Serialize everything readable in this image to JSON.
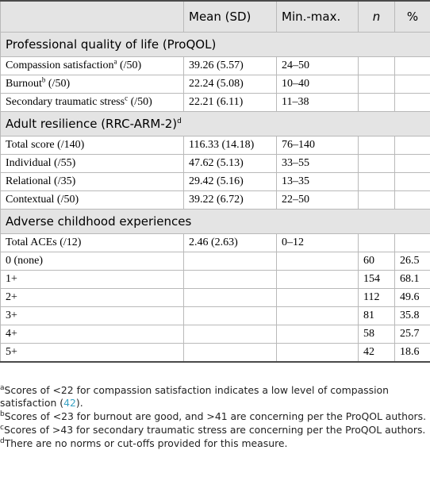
{
  "header": {
    "col1": "",
    "mean": "Mean (SD)",
    "minmax": "Min.-max.",
    "n": "n",
    "pct": "%"
  },
  "sections": {
    "proqol": {
      "label": "Professional quality of life (ProQOL)"
    },
    "resilience": {
      "label": "Adult resilience (RRC-ARM-2)",
      "sup": "d"
    },
    "aces": {
      "label": "Adverse childhood experiences"
    }
  },
  "rows": [
    {
      "label": "Compassion satisfaction",
      "sup": "a",
      "suffix": " (/50)",
      "mean": "39.26 (5.57)",
      "minmax": "24–50",
      "n": "",
      "pct": ""
    },
    {
      "label": "Burnout",
      "sup": "b",
      "suffix": " (/50)",
      "mean": "22.24 (5.08)",
      "minmax": "10–40",
      "n": "",
      "pct": ""
    },
    {
      "label": "Secondary traumatic stress",
      "sup": "c",
      "suffix": " (/50)",
      "mean": "22.21 (6.11)",
      "minmax": "11–38",
      "n": "",
      "pct": ""
    },
    {
      "label": "Total score (/140)",
      "sup": "",
      "suffix": "",
      "mean": "116.33 (14.18)",
      "minmax": "76–140",
      "n": "",
      "pct": ""
    },
    {
      "label": "Individual (/55)",
      "sup": "",
      "suffix": "",
      "mean": "47.62 (5.13)",
      "minmax": "33–55",
      "n": "",
      "pct": ""
    },
    {
      "label": "Relational (/35)",
      "sup": "",
      "suffix": "",
      "mean": "29.42 (5.16)",
      "minmax": "13–35",
      "n": "",
      "pct": ""
    },
    {
      "label": "Contextual (/50)",
      "sup": "",
      "suffix": "",
      "mean": "39.22 (6.72)",
      "minmax": "22–50",
      "n": "",
      "pct": ""
    },
    {
      "label": "Total ACEs (/12)",
      "sup": "",
      "suffix": "",
      "mean": "2.46 (2.63)",
      "minmax": "0–12",
      "n": "",
      "pct": ""
    },
    {
      "label": "0 (none)",
      "sup": "",
      "suffix": "",
      "mean": "",
      "minmax": "",
      "n": "60",
      "pct": "26.5"
    },
    {
      "label": "1+",
      "sup": "",
      "suffix": "",
      "mean": "",
      "minmax": "",
      "n": "154",
      "pct": "68.1"
    },
    {
      "label": "2+",
      "sup": "",
      "suffix": "",
      "mean": "",
      "minmax": "",
      "n": "112",
      "pct": "49.6"
    },
    {
      "label": "3+",
      "sup": "",
      "suffix": "",
      "mean": "",
      "minmax": "",
      "n": "81",
      "pct": "35.8"
    },
    {
      "label": "4+",
      "sup": "",
      "suffix": "",
      "mean": "",
      "minmax": "",
      "n": "58",
      "pct": "25.7"
    },
    {
      "label": "5+",
      "sup": "",
      "suffix": "",
      "mean": "",
      "minmax": "",
      "n": "42",
      "pct": "18.6"
    }
  ],
  "notes": {
    "a": {
      "mark": "a",
      "text": "Scores of <22 for compassion satisfaction indicates a low level of compassion satisfaction (",
      "ref": "42",
      "tail": ")."
    },
    "b": {
      "mark": "b",
      "text": "Scores of <23 for burnout are good, and >41 are concerning per the ProQOL authors."
    },
    "c": {
      "mark": "c",
      "text": "Scores of >43 for secondary traumatic stress are concerning per the ProQOL authors."
    },
    "d": {
      "mark": "d",
      "text": "There are no norms or cut-offs provided for this measure."
    }
  }
}
